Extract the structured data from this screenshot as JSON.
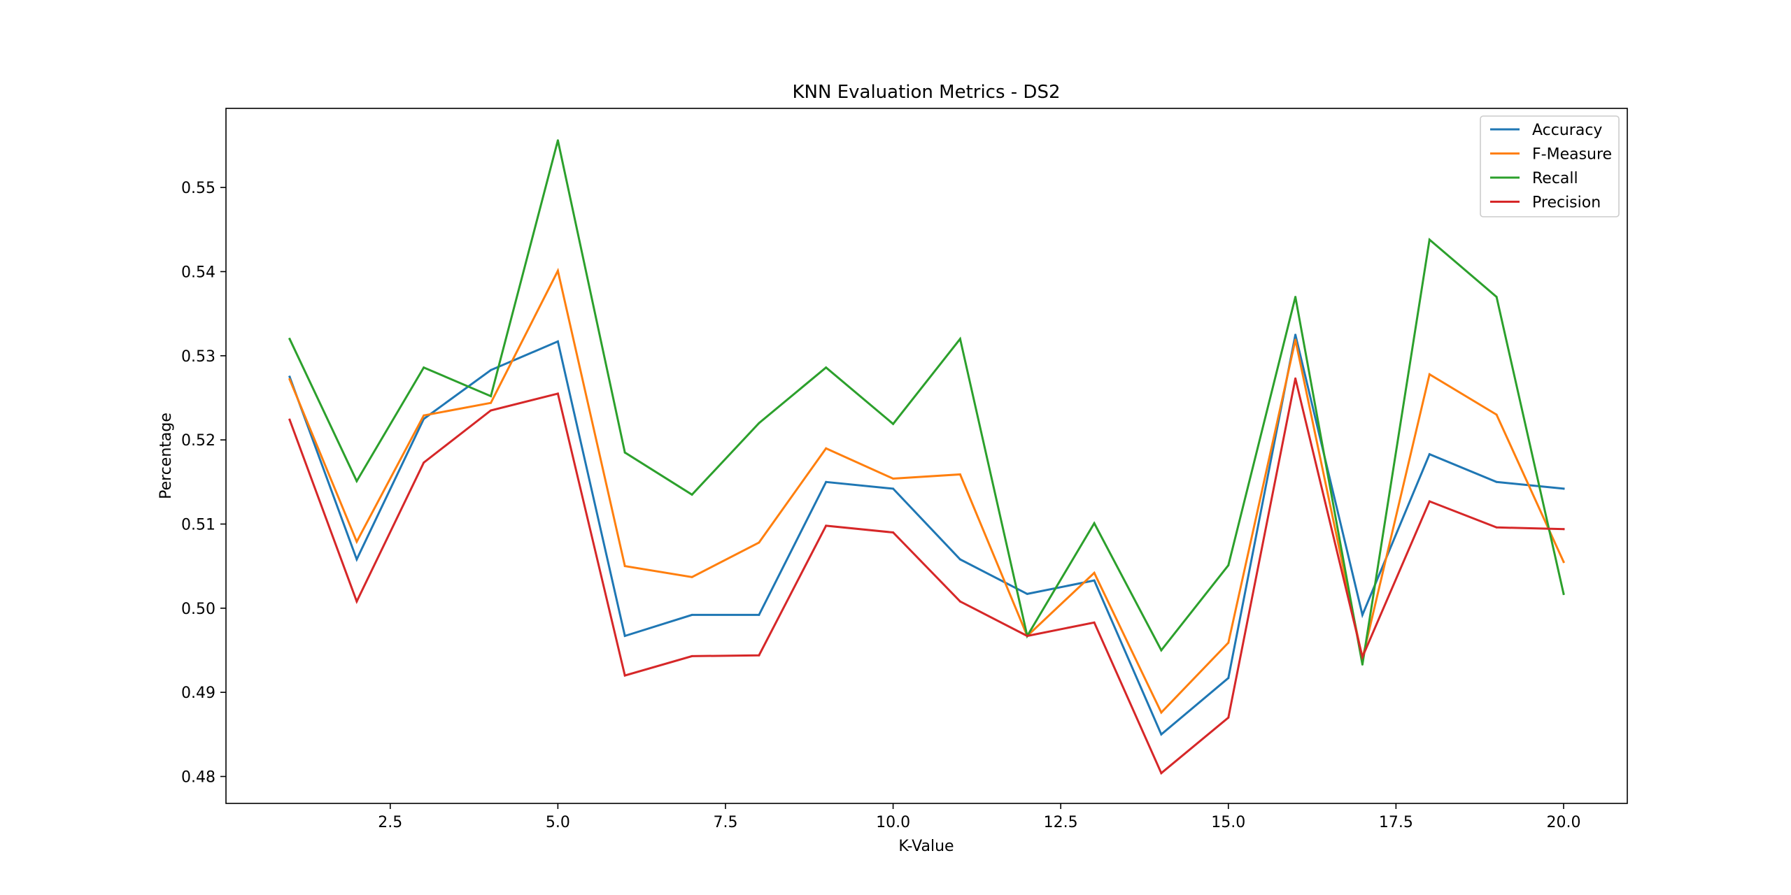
{
  "chart_data": {
    "type": "line",
    "title": "KNN Evaluation Metrics - DS2",
    "xlabel": "K-Value",
    "ylabel": "Percentage",
    "x": [
      1,
      2,
      3,
      4,
      5,
      6,
      7,
      8,
      9,
      10,
      11,
      12,
      13,
      14,
      15,
      16,
      17,
      18,
      19,
      20
    ],
    "xlim": [
      0.05,
      20.95
    ],
    "ylim": [
      0.4768,
      0.5594
    ],
    "xticks": [
      2.5,
      5.0,
      7.5,
      10.0,
      12.5,
      15.0,
      17.5,
      20.0
    ],
    "xtick_labels": [
      "2.5",
      "5.0",
      "7.5",
      "10.0",
      "12.5",
      "15.0",
      "17.5",
      "20.0"
    ],
    "yticks": [
      0.48,
      0.49,
      0.5,
      0.51,
      0.52,
      0.53,
      0.54,
      0.55
    ],
    "ytick_labels": [
      "0.48",
      "0.49",
      "0.50",
      "0.51",
      "0.52",
      "0.53",
      "0.54",
      "0.55"
    ],
    "grid": false,
    "legend_position": "top-right",
    "series": [
      {
        "name": "Accuracy",
        "color": "#1f77b4",
        "values": [
          0.5275,
          0.5058,
          0.5225,
          0.5283,
          0.5317,
          0.4967,
          0.4992,
          0.4992,
          0.515,
          0.5142,
          0.5058,
          0.5017,
          0.5033,
          0.485,
          0.4917,
          0.5325,
          0.4992,
          0.5183,
          0.515,
          0.5142
        ]
      },
      {
        "name": "F-Measure",
        "color": "#ff7f0e",
        "values": [
          0.5272,
          0.5079,
          0.5229,
          0.5244,
          0.5401,
          0.505,
          0.5037,
          0.5078,
          0.519,
          0.5154,
          0.5159,
          0.4967,
          0.5042,
          0.4876,
          0.4959,
          0.5319,
          0.494,
          0.5278,
          0.523,
          0.5055
        ]
      },
      {
        "name": "Recall",
        "color": "#2ca02c",
        "values": [
          0.532,
          0.5151,
          0.5286,
          0.5252,
          0.5556,
          0.5185,
          0.5135,
          0.522,
          0.5286,
          0.5219,
          0.532,
          0.4967,
          0.5101,
          0.495,
          0.5051,
          0.537,
          0.4933,
          0.5438,
          0.537,
          0.5017
        ]
      },
      {
        "name": "Precision",
        "color": "#d62728",
        "values": [
          0.5224,
          0.5008,
          0.5173,
          0.5235,
          0.5255,
          0.492,
          0.4943,
          0.4944,
          0.5098,
          0.509,
          0.5008,
          0.4967,
          0.4983,
          0.4804,
          0.487,
          0.5273,
          0.4942,
          0.5127,
          0.5096,
          0.5094
        ]
      }
    ]
  }
}
